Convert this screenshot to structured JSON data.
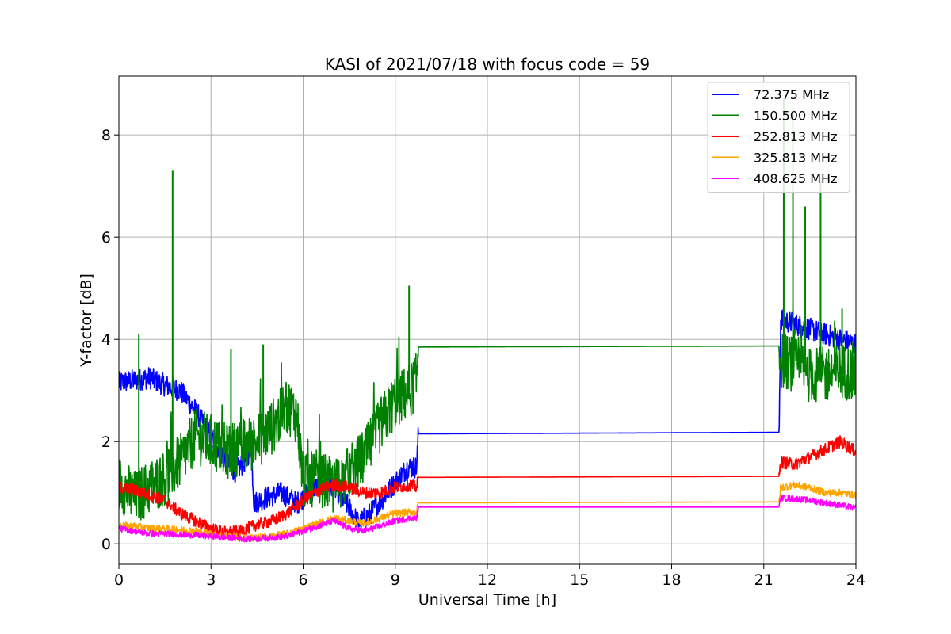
{
  "chart_data": {
    "type": "line",
    "title": "KASI of 2021/07/18 with focus code = 59",
    "xlabel": "Universal Time [h]",
    "ylabel": "Y-factor [dB]",
    "xlim": [
      0,
      24
    ],
    "ylim": [
      -0.4,
      9.15
    ],
    "xticks": [
      0,
      3,
      6,
      9,
      12,
      15,
      18,
      21,
      24
    ],
    "yticks": [
      0,
      2,
      4,
      6,
      8
    ],
    "grid": true,
    "legend_position": "top-right",
    "series": [
      {
        "name": " 72.375 MHz",
        "color": "#0000ff",
        "x": [
          0,
          0.5,
          1.0,
          1.5,
          2.0,
          2.5,
          3.0,
          3.5,
          3.8,
          4.2,
          4.3,
          4.4,
          4.8,
          5.3,
          5.8,
          6.2,
          6.6,
          7.0,
          7.4,
          7.8,
          8.2,
          8.6,
          9.0,
          9.4,
          9.7,
          9.75,
          21.5,
          21.55,
          22.0,
          22.5,
          23.0,
          23.5,
          24.0
        ],
        "y": [
          3.15,
          3.2,
          3.25,
          3.1,
          3.0,
          2.6,
          2.1,
          1.6,
          1.4,
          1.7,
          2.0,
          0.8,
          0.9,
          1.0,
          0.8,
          1.0,
          1.2,
          1.1,
          0.8,
          0.4,
          0.6,
          0.9,
          1.2,
          1.5,
          1.5,
          2.15,
          2.18,
          4.4,
          4.3,
          4.2,
          4.1,
          4.0,
          3.9
        ]
      },
      {
        "name": "150.500 MHz",
        "color": "#008000",
        "x": [
          0,
          0.5,
          1.0,
          1.5,
          2.0,
          2.5,
          3.0,
          3.5,
          4.0,
          4.5,
          5.0,
          5.5,
          5.8,
          6.0,
          6.5,
          7.0,
          7.5,
          8.0,
          8.5,
          9.0,
          9.5,
          9.7,
          9.75,
          21.5,
          21.55,
          22.0,
          22.5,
          23.0,
          23.5,
          24.0
        ],
        "y": [
          1.2,
          0.9,
          1.1,
          1.3,
          1.6,
          2.1,
          2.0,
          1.8,
          1.9,
          2.0,
          2.3,
          2.7,
          2.5,
          1.2,
          1.3,
          1.1,
          1.4,
          1.7,
          2.3,
          2.8,
          3.0,
          3.2,
          3.85,
          3.87,
          3.6,
          3.5,
          3.3,
          3.3,
          3.4,
          3.3
        ],
        "spikes": [
          [
            0.65,
            4.1
          ],
          [
            1.75,
            7.3
          ],
          [
            3.65,
            3.8
          ],
          [
            4.7,
            3.9
          ],
          [
            9.45,
            5.05
          ],
          [
            21.65,
            8.7
          ],
          [
            21.95,
            8.5
          ],
          [
            22.35,
            6.6
          ],
          [
            22.85,
            7.1
          ],
          [
            23.55,
            4.6
          ]
        ]
      },
      {
        "name": "252.813 MHz",
        "color": "#ff0000",
        "x": [
          0,
          0.5,
          1.0,
          1.5,
          2.0,
          2.5,
          3.0,
          3.5,
          4.0,
          4.5,
          5.0,
          5.5,
          6.0,
          6.5,
          7.0,
          7.5,
          8.0,
          8.5,
          9.0,
          9.5,
          9.7,
          9.75,
          21.5,
          21.55,
          22.0,
          22.5,
          23.0,
          23.5,
          24.0
        ],
        "y": [
          1.1,
          1.05,
          0.95,
          0.85,
          0.6,
          0.45,
          0.3,
          0.22,
          0.25,
          0.38,
          0.45,
          0.6,
          0.85,
          1.05,
          1.15,
          1.1,
          1.0,
          1.0,
          1.1,
          1.15,
          1.1,
          1.3,
          1.32,
          1.6,
          1.55,
          1.7,
          1.85,
          2.0,
          1.8
        ]
      },
      {
        "name": "325.813 MHz",
        "color": "#ffa500",
        "x": [
          0,
          0.5,
          1.0,
          1.5,
          2.0,
          2.5,
          3.0,
          3.5,
          4.0,
          4.5,
          5.0,
          5.5,
          6.0,
          6.5,
          7.0,
          7.5,
          8.0,
          8.5,
          9.0,
          9.5,
          9.7,
          9.75,
          21.5,
          21.55,
          22.0,
          22.5,
          23.0,
          23.5,
          24.0
        ],
        "y": [
          0.35,
          0.35,
          0.3,
          0.3,
          0.28,
          0.25,
          0.2,
          0.15,
          0.12,
          0.12,
          0.15,
          0.2,
          0.3,
          0.4,
          0.5,
          0.45,
          0.4,
          0.5,
          0.6,
          0.62,
          0.62,
          0.8,
          0.82,
          1.1,
          1.15,
          1.1,
          1.0,
          1.0,
          0.95
        ]
      },
      {
        "name": "408.625 MHz",
        "color": "#ff00ff",
        "x": [
          0,
          0.5,
          1.0,
          1.5,
          2.0,
          2.5,
          3.0,
          3.5,
          4.0,
          4.5,
          5.0,
          5.5,
          6.0,
          6.5,
          7.0,
          7.5,
          8.0,
          8.5,
          9.0,
          9.5,
          9.7,
          9.75,
          21.5,
          21.55,
          22.0,
          22.5,
          23.0,
          23.5,
          24.0
        ],
        "y": [
          0.3,
          0.25,
          0.2,
          0.2,
          0.18,
          0.17,
          0.15,
          0.12,
          0.1,
          0.1,
          0.12,
          0.15,
          0.25,
          0.35,
          0.45,
          0.3,
          0.25,
          0.35,
          0.45,
          0.5,
          0.5,
          0.72,
          0.72,
          0.9,
          0.88,
          0.85,
          0.8,
          0.75,
          0.7
        ]
      }
    ]
  }
}
